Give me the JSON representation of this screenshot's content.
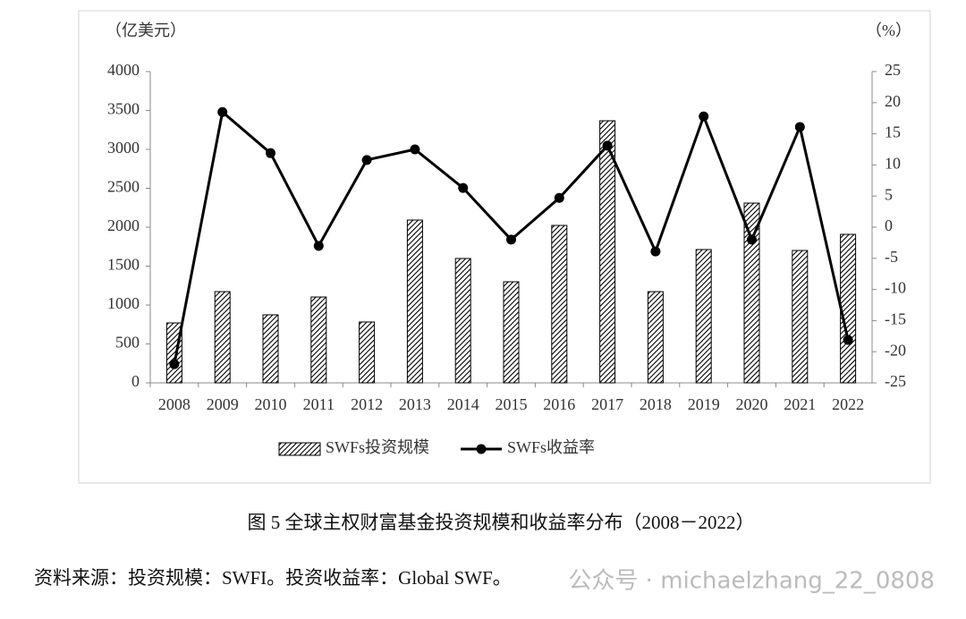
{
  "chart_data": {
    "type": "combo",
    "y_label": "（亿美元）",
    "y2_label": "（%）",
    "categories": [
      "2008",
      "2009",
      "2010",
      "2011",
      "2012",
      "2013",
      "2014",
      "2015",
      "2016",
      "2017",
      "2018",
      "2019",
      "2020",
      "2021",
      "2022"
    ],
    "series": [
      {
        "name": "SWFs投资规模",
        "type": "bar",
        "color": "#000000",
        "values": [
          770,
          1172,
          874,
          1103,
          782,
          2092,
          1598,
          1299,
          2023,
          3368,
          1172,
          1713,
          2310,
          1701,
          1908
        ]
      },
      {
        "name": "SWFs收益率",
        "type": "line",
        "color": "#000000",
        "axis": "y2",
        "values": [
          -22,
          18.5,
          11.9,
          -3,
          10.8,
          12.5,
          6.3,
          -2,
          4.7,
          13.1,
          -3.9,
          17.8,
          -2,
          16.1,
          -18.1
        ]
      }
    ],
    "ylim": [
      0,
      4000
    ],
    "yticks": [
      0,
      500,
      1000,
      1500,
      2000,
      2500,
      3000,
      3500,
      4000
    ],
    "y2lim": [
      -25,
      25
    ],
    "y2ticks": [
      -25,
      -20,
      -15,
      -10,
      -5,
      0,
      5,
      10,
      15,
      20,
      25
    ],
    "legend": "bottom"
  },
  "caption": "图 5 全球主权财富基金投资规模和收益率分布（2008－2022）",
  "source": "资料来源：投资规模：SWFI。投资收益率：Global SWF。",
  "watermark": "公众号 · michaelzhang_22_0808"
}
